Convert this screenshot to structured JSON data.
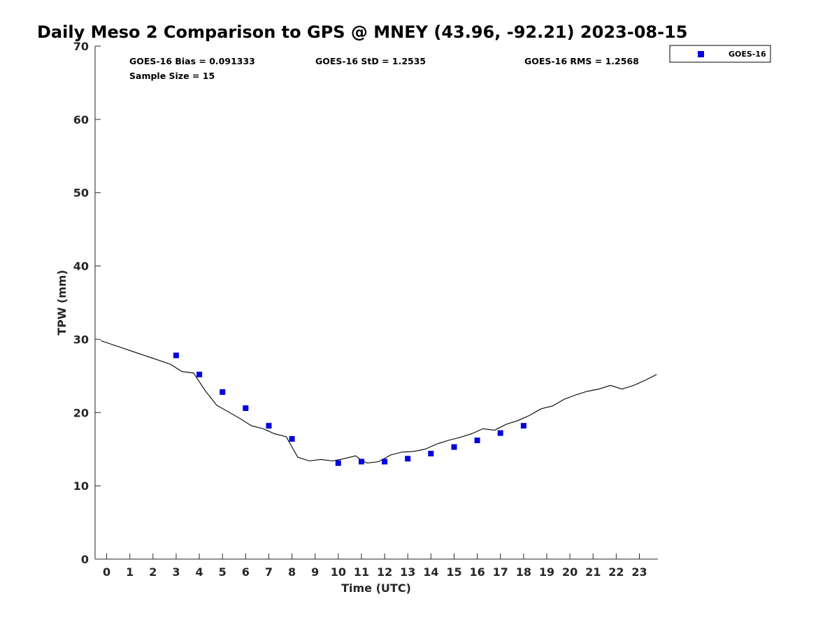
{
  "chart_data": {
    "type": "scatter",
    "title": "Daily Meso 2 Comparison to GPS @ MNEY (43.96, -92.21) 2023-08-15",
    "xlabel": "Time (UTC)",
    "ylabel": "TPW (mm)",
    "xlim": [
      -0.5,
      23.8
    ],
    "ylim": [
      0,
      70
    ],
    "x_ticks": [
      0,
      1,
      2,
      3,
      4,
      5,
      6,
      7,
      8,
      9,
      10,
      11,
      12,
      13,
      14,
      15,
      16,
      17,
      18,
      19,
      20,
      21,
      22,
      23
    ],
    "x_tick_labels": [
      "0",
      "1",
      "2",
      "3",
      "4",
      "5",
      "6",
      "7",
      "8",
      "9",
      "10",
      "11",
      "12",
      "13",
      "14",
      "15",
      "16",
      "17",
      "18",
      "19",
      "20",
      "21",
      "22",
      "23"
    ],
    "y_ticks": [
      0,
      10,
      20,
      30,
      40,
      50,
      60,
      70
    ],
    "y_tick_labels": [
      "0",
      "10",
      "20",
      "30",
      "40",
      "50",
      "60",
      "70"
    ],
    "grid": false,
    "legend_position": "outside-top-right",
    "stats": {
      "bias": "GOES-16 Bias = 0.091333",
      "std": "GOES-16 StD = 1.2535",
      "rms": "GOES-16 RMS = 1.2568",
      "sample_size": "Sample Size = 15"
    },
    "series": [
      {
        "name": "GOES-16",
        "kind": "scatter",
        "marker": "square",
        "color": "#0000dd",
        "x": [
          3,
          4,
          5,
          6,
          7,
          8,
          10,
          11,
          12,
          13,
          14,
          15,
          16,
          17,
          18
        ],
        "y": [
          27.8,
          25.2,
          22.8,
          20.6,
          18.2,
          16.4,
          13.1,
          13.3,
          13.3,
          13.7,
          14.4,
          15.3,
          16.2,
          17.2,
          18.2
        ]
      },
      {
        "kind": "line",
        "color": "#000000",
        "x": [
          -0.25,
          0.5,
          1.25,
          2.0,
          2.75,
          3.25,
          3.75,
          4.25,
          4.75,
          5.25,
          5.75,
          6.25,
          6.75,
          7.25,
          7.75,
          8.25,
          8.75,
          9.25,
          9.75,
          10.25,
          10.75,
          11.0,
          11.25,
          11.75,
          12.25,
          12.75,
          13.25,
          13.75,
          14.25,
          14.75,
          15.25,
          15.75,
          16.25,
          16.75,
          17.25,
          17.75,
          18.25,
          18.75,
          19.25,
          19.75,
          20.25,
          20.75,
          21.25,
          21.75,
          22.25,
          22.75,
          23.25,
          23.75
        ],
        "y": [
          29.8,
          29.0,
          28.2,
          27.4,
          26.6,
          25.6,
          25.4,
          23.0,
          21.0,
          20.1,
          19.2,
          18.2,
          17.8,
          17.1,
          16.7,
          13.9,
          13.4,
          13.6,
          13.4,
          13.7,
          14.1,
          13.5,
          13.1,
          13.3,
          14.2,
          14.6,
          14.7,
          15.0,
          15.7,
          16.2,
          16.6,
          17.1,
          17.8,
          17.6,
          18.4,
          18.9,
          19.6,
          20.5,
          20.9,
          21.8,
          22.4,
          22.9,
          23.2,
          23.7,
          23.2,
          23.7,
          24.4,
          25.2
        ]
      }
    ]
  }
}
